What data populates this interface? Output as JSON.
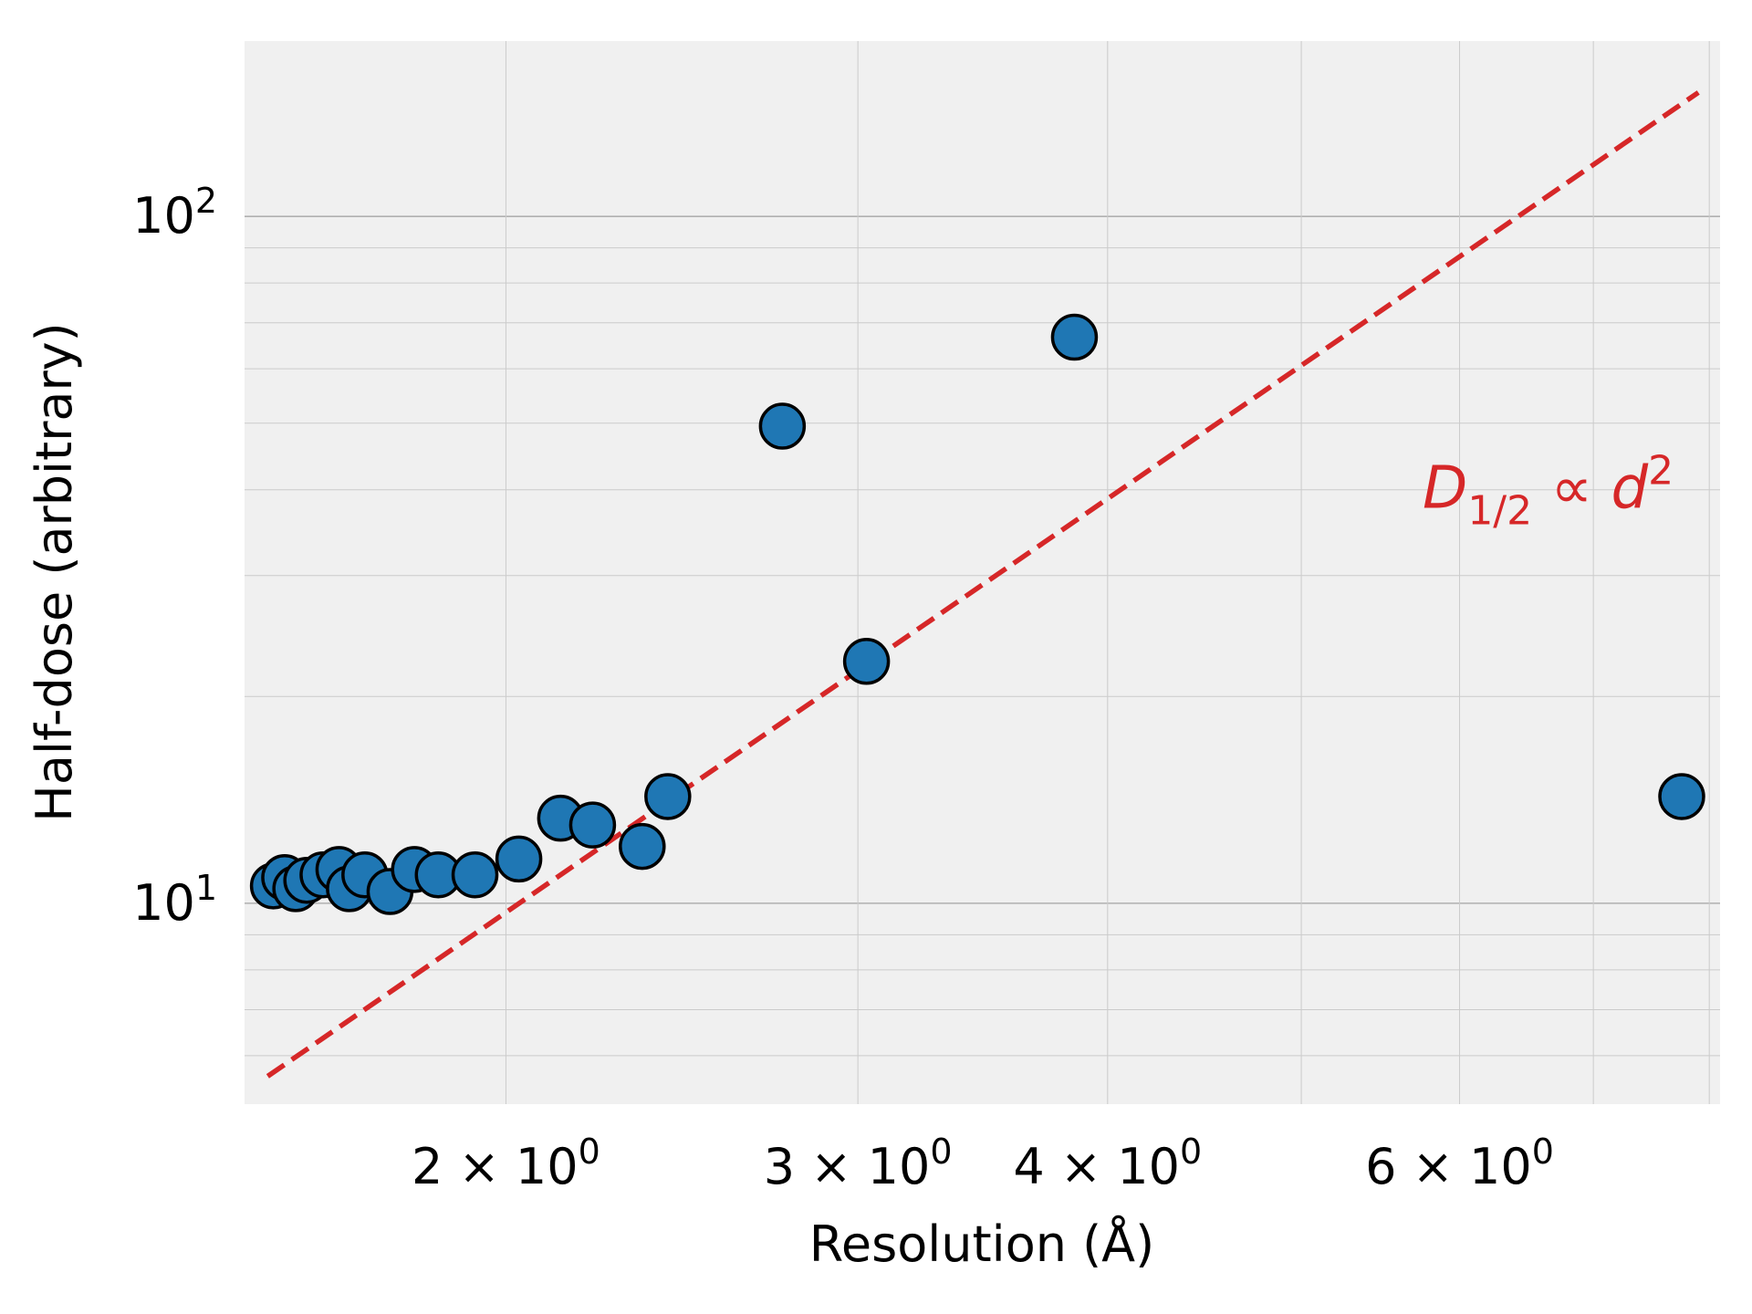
{
  "chart_data": {
    "type": "scatter",
    "title": "",
    "xlabel": "Resolution (Å)",
    "ylabel": "Half-dose (arbitrary)",
    "xscale": "log",
    "yscale": "log",
    "xlim": [
      1.48,
      8.1
    ],
    "ylim": [
      5.1,
      180
    ],
    "grid": true,
    "x_ticks": [
      {
        "value": 2,
        "mantissa": "2",
        "base": "10",
        "exp": "0"
      },
      {
        "value": 3,
        "mantissa": "3",
        "base": "10",
        "exp": "0"
      },
      {
        "value": 4,
        "mantissa": "4",
        "base": "10",
        "exp": "0"
      },
      {
        "value": 6,
        "mantissa": "6",
        "base": "10",
        "exp": "0"
      }
    ],
    "y_ticks": [
      {
        "value": 10,
        "base": "10",
        "exp": "1"
      },
      {
        "value": 100,
        "base": "10",
        "exp": "2"
      }
    ],
    "points": {
      "color": "#1f77b4",
      "edgecolor": "#000000",
      "x": [
        1.53,
        1.55,
        1.57,
        1.59,
        1.62,
        1.65,
        1.67,
        1.7,
        1.75,
        1.8,
        1.85,
        1.93,
        2.03,
        2.13,
        2.21,
        2.34,
        2.41,
        2.75,
        3.03,
        3.85,
        7.75
      ],
      "y": [
        10.6,
        10.9,
        10.5,
        10.8,
        11.0,
        11.2,
        10.5,
        11.0,
        10.4,
        11.2,
        11.0,
        11.0,
        11.6,
        13.3,
        13.0,
        12.1,
        14.3,
        49.5,
        22.5,
        66.7,
        14.3
      ]
    },
    "fit_line": {
      "color": "#d62728",
      "style": "dashed",
      "x": [
        1.52,
        7.9
      ],
      "y": [
        5.6,
        151.5
      ]
    },
    "annotation": {
      "main": "D",
      "sub": "1/2",
      "mid": " ∝ ",
      "var": "d",
      "sup": "2",
      "color": "#d62728",
      "x": 5.75,
      "y": 40
    }
  }
}
